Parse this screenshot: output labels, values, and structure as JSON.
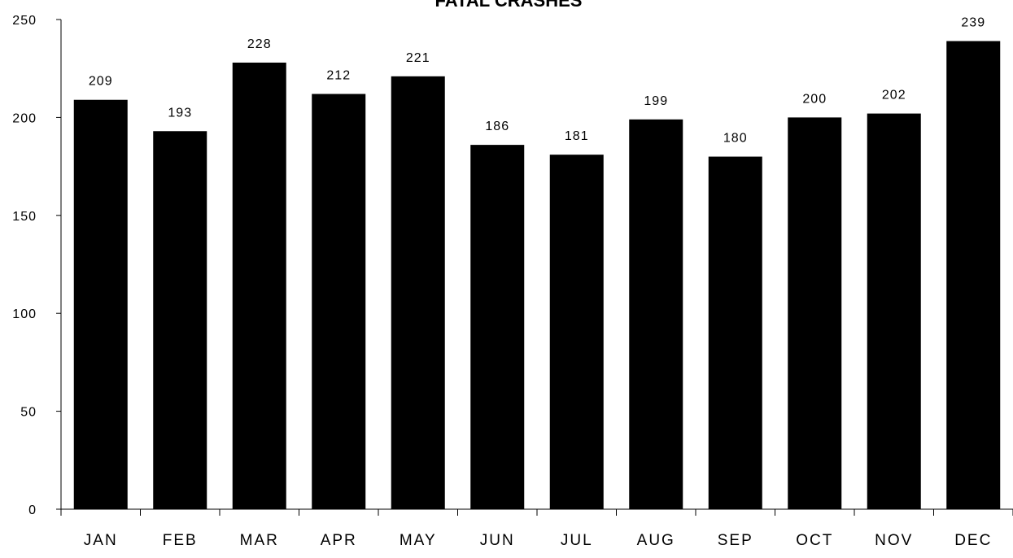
{
  "chart_data": {
    "type": "bar",
    "title": "FATAL CRASHES",
    "xlabel": "",
    "ylabel": "",
    "categories": [
      "JAN",
      "FEB",
      "MAR",
      "APR",
      "MAY",
      "JUN",
      "JUL",
      "AUG",
      "SEP",
      "OCT",
      "NOV",
      "DEC"
    ],
    "values": [
      209,
      193,
      228,
      212,
      221,
      186,
      181,
      199,
      180,
      200,
      202,
      239
    ],
    "data_labels": [
      "209",
      "193",
      "228",
      "212",
      "221",
      "186",
      "181",
      "199",
      "180",
      "200",
      "202",
      "239"
    ],
    "ylim": [
      0,
      250
    ],
    "yticks": [
      0,
      50,
      100,
      150,
      200,
      250
    ],
    "ytick_labels": [
      "0",
      "50",
      "100",
      "150",
      "200",
      "250"
    ],
    "grid": false,
    "legend": "none",
    "bar_color": "#000000"
  }
}
